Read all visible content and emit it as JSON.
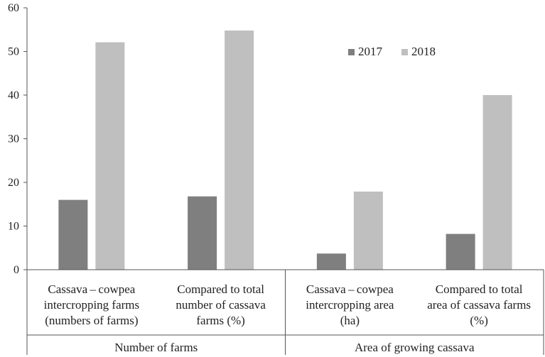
{
  "chart_data": {
    "type": "bar",
    "categories": [
      [
        "Cassava – cowpea",
        "intercropping farms",
        "(numbers of farms)"
      ],
      [
        "Compared to total",
        "number of cassava",
        "farms (%)"
      ],
      [
        "Cassava – cowpea",
        "intercropping area",
        "(ha)"
      ],
      [
        "Compared to total",
        "area of cassava farms",
        "(%)"
      ]
    ],
    "groups": [
      {
        "label": "Number of farms",
        "categories": [
          0,
          1
        ]
      },
      {
        "label": "Area of growing cassava",
        "categories": [
          2,
          3
        ]
      }
    ],
    "series": [
      {
        "name": "2017",
        "color": "#7f7f7f",
        "values": [
          16.0,
          16.8,
          3.7,
          8.2
        ]
      },
      {
        "name": "2018",
        "color": "#bfbfbf",
        "values": [
          52.1,
          54.8,
          17.9,
          40.0
        ]
      }
    ],
    "ylim": [
      0,
      60
    ],
    "yticks": [
      0,
      10,
      20,
      30,
      40,
      50,
      60
    ],
    "legend": "top-right",
    "grid": false
  }
}
